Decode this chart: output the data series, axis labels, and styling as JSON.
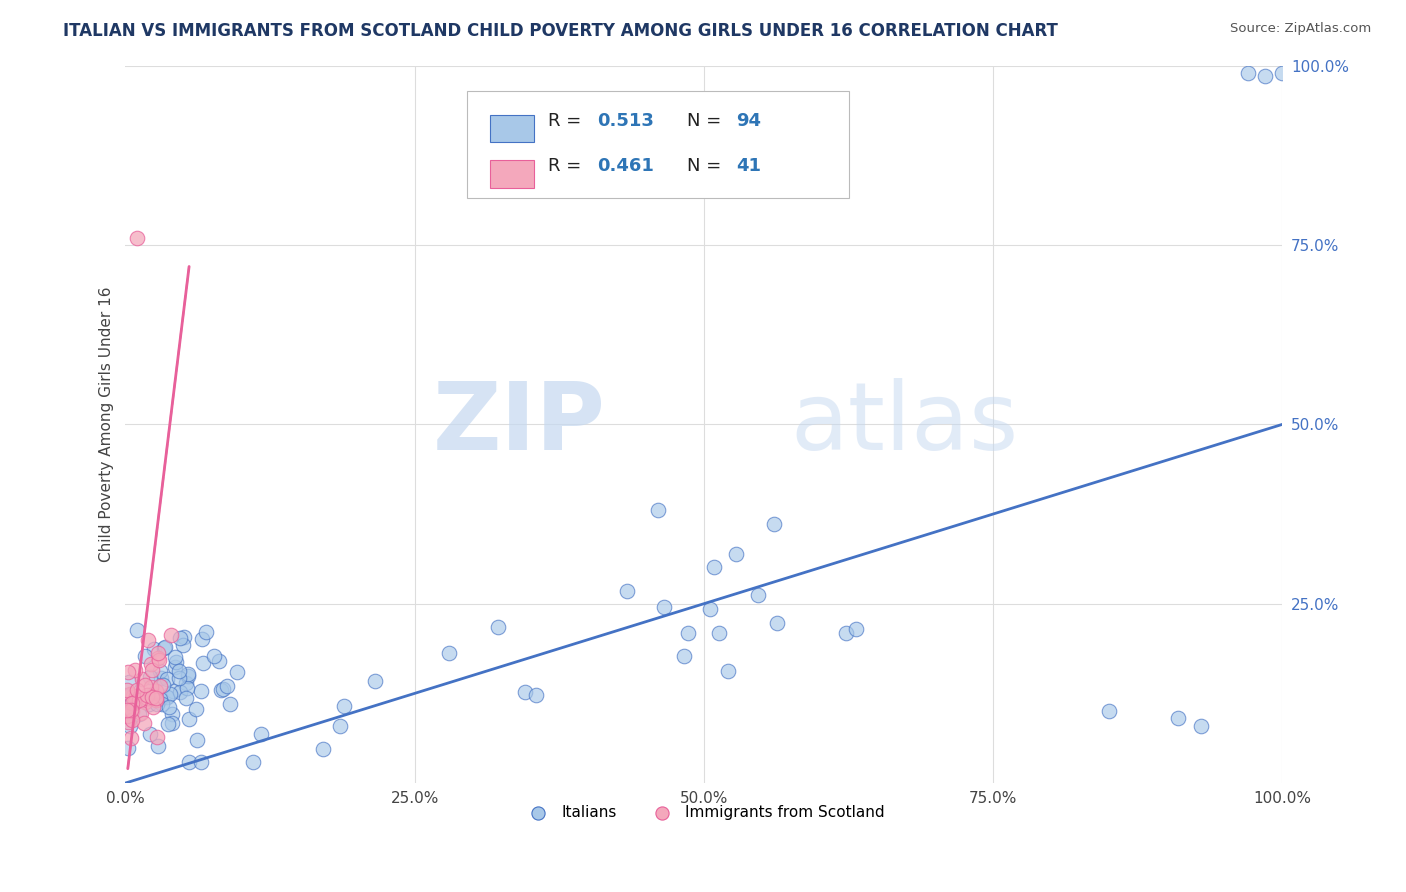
{
  "title": "ITALIAN VS IMMIGRANTS FROM SCOTLAND CHILD POVERTY AMONG GIRLS UNDER 16 CORRELATION CHART",
  "source": "Source: ZipAtlas.com",
  "ylabel": "Child Poverty Among Girls Under 16",
  "xlim": [
    0,
    1
  ],
  "ylim": [
    0,
    1
  ],
  "xtick_labels": [
    "0.0%",
    "25.0%",
    "50.0%",
    "75.0%",
    "100.0%"
  ],
  "xtick_positions": [
    0,
    0.25,
    0.5,
    0.75,
    1.0
  ],
  "ytick_labels_right": [
    "100.0%",
    "75.0%",
    "50.0%",
    "25.0%"
  ],
  "ytick_positions_right": [
    1.0,
    0.75,
    0.5,
    0.25
  ],
  "color_italian": "#a8c8e8",
  "color_scotland": "#f4a8bc",
  "color_trendline_italian": "#4472c4",
  "color_trendline_scotland": "#e8609a",
  "color_trendline_scotland_dash": "#e8a0bc",
  "watermark_zip": "ZIP",
  "watermark_atlas": "atlas",
  "title_color": "#1f3864",
  "source_color": "#555555",
  "title_fontsize": 12,
  "background_color": "#ffffff",
  "grid_color": "#dddddd",
  "right_tick_color": "#4472c4",
  "trendline_it_x0": 0.0,
  "trendline_it_y0": 0.0,
  "trendline_it_x1": 1.0,
  "trendline_it_y1": 0.5,
  "trendline_sc_x0": 0.002,
  "trendline_sc_y0": 0.02,
  "trendline_sc_x1": 0.055,
  "trendline_sc_y1": 0.72
}
